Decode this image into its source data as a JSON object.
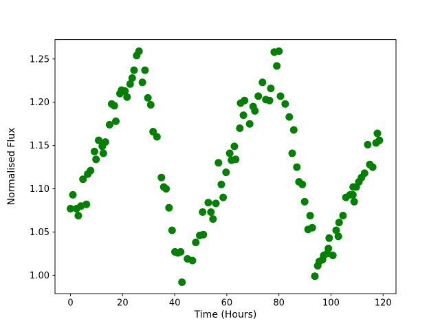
{
  "figure": {
    "background_color": "#ffffff",
    "spine_color": "#000000",
    "tick_color": "#000000"
  },
  "chart_data": {
    "type": "scatter",
    "title": "",
    "xlabel": "Time (Hours)",
    "ylabel": "Normalised Flux",
    "legend": null,
    "grid": false,
    "marker_color": "#008000",
    "marker_radius": 5.5,
    "xlim": [
      -5.95,
      124.95
    ],
    "ylim": [
      0.9787,
      1.2724
    ],
    "x_ticks": [
      0,
      20,
      40,
      60,
      80,
      100,
      120
    ],
    "x_tick_labels": [
      "0",
      "20",
      "40",
      "60",
      "80",
      "100",
      "120"
    ],
    "y_ticks": [
      1.0,
      1.05,
      1.1,
      1.15,
      1.2,
      1.25
    ],
    "y_tick_labels": [
      "1.00",
      "1.05",
      "1.10",
      "1.15",
      "1.20",
      "1.25"
    ],
    "points": [
      [
        0.0,
        1.077
      ],
      [
        0.9,
        1.093
      ],
      [
        2.3,
        1.077
      ],
      [
        3.0,
        1.069
      ],
      [
        4.0,
        1.08
      ],
      [
        4.8,
        1.111
      ],
      [
        6.1,
        1.082
      ],
      [
        6.6,
        1.117
      ],
      [
        7.7,
        1.121
      ],
      [
        9.2,
        1.143
      ],
      [
        9.8,
        1.134
      ],
      [
        10.8,
        1.156
      ],
      [
        12.2,
        1.149
      ],
      [
        12.6,
        1.141
      ],
      [
        13.4,
        1.154
      ],
      [
        15.0,
        1.174
      ],
      [
        15.8,
        1.198
      ],
      [
        16.8,
        1.196
      ],
      [
        17.4,
        1.178
      ],
      [
        19.0,
        1.21
      ],
      [
        19.6,
        1.214
      ],
      [
        20.9,
        1.213
      ],
      [
        21.7,
        1.206
      ],
      [
        22.9,
        1.221
      ],
      [
        23.7,
        1.228
      ],
      [
        24.4,
        1.237
      ],
      [
        25.4,
        1.254
      ],
      [
        26.3,
        1.259
      ],
      [
        27.6,
        1.223
      ],
      [
        28.6,
        1.237
      ],
      [
        29.7,
        1.205
      ],
      [
        30.8,
        1.197
      ],
      [
        31.7,
        1.166
      ],
      [
        33.2,
        1.16
      ],
      [
        34.9,
        1.113
      ],
      [
        35.8,
        1.102
      ],
      [
        36.7,
        1.1
      ],
      [
        37.8,
        1.078
      ],
      [
        39.0,
        1.052
      ],
      [
        40.1,
        1.027
      ],
      [
        41.2,
        1.026
      ],
      [
        42.3,
        1.027
      ],
      [
        42.8,
        0.992
      ],
      [
        44.9,
        1.019
      ],
      [
        46.8,
        1.017
      ],
      [
        48.1,
        1.038
      ],
      [
        49.6,
        1.046
      ],
      [
        50.7,
        1.073
      ],
      [
        51.0,
        1.047
      ],
      [
        52.9,
        1.084
      ],
      [
        53.9,
        1.073
      ],
      [
        54.7,
        1.065
      ],
      [
        55.8,
        1.083
      ],
      [
        56.8,
        1.13
      ],
      [
        57.9,
        1.105
      ],
      [
        58.6,
        1.09
      ],
      [
        59.7,
        1.119
      ],
      [
        61.1,
        1.141
      ],
      [
        61.8,
        1.133
      ],
      [
        62.9,
        1.149
      ],
      [
        63.4,
        1.134
      ],
      [
        65.0,
        1.17
      ],
      [
        65.3,
        1.199
      ],
      [
        66.4,
        1.185
      ],
      [
        66.8,
        1.202
      ],
      [
        68.8,
        1.175
      ],
      [
        70.1,
        1.195
      ],
      [
        70.8,
        1.19
      ],
      [
        72.1,
        1.207
      ],
      [
        73.7,
        1.223
      ],
      [
        75.0,
        1.203
      ],
      [
        76.4,
        1.202
      ],
      [
        76.9,
        1.216
      ],
      [
        78.2,
        1.258
      ],
      [
        79.2,
        1.242
      ],
      [
        80.0,
        1.259
      ],
      [
        80.6,
        1.207
      ],
      [
        82.4,
        1.198
      ],
      [
        84.0,
        1.183
      ],
      [
        85.1,
        1.141
      ],
      [
        85.7,
        1.168
      ],
      [
        86.9,
        1.125
      ],
      [
        87.7,
        1.108
      ],
      [
        89.0,
        1.105
      ],
      [
        89.9,
        1.085
      ],
      [
        91.2,
        1.053
      ],
      [
        92.0,
        1.069
      ],
      [
        92.8,
        1.055
      ],
      [
        93.8,
        0.999
      ],
      [
        94.9,
        1.011
      ],
      [
        95.5,
        1.016
      ],
      [
        96.7,
        1.018
      ],
      [
        97.2,
        1.023
      ],
      [
        98.5,
        1.025
      ],
      [
        99.0,
        1.031
      ],
      [
        99.3,
        1.043
      ],
      [
        100.7,
        1.023
      ],
      [
        102.0,
        1.052
      ],
      [
        102.8,
        1.045
      ],
      [
        103.1,
        1.061
      ],
      [
        104.6,
        1.069
      ],
      [
        105.7,
        1.09
      ],
      [
        107.3,
        1.093
      ],
      [
        108.4,
        1.093
      ],
      [
        108.5,
        1.102
      ],
      [
        108.9,
        1.085
      ],
      [
        109.7,
        1.102
      ],
      [
        110.7,
        1.108
      ],
      [
        111.7,
        1.113
      ],
      [
        112.9,
        1.118
      ],
      [
        114.1,
        1.151
      ],
      [
        114.9,
        1.128
      ],
      [
        116.0,
        1.125
      ],
      [
        117.3,
        1.153
      ],
      [
        117.8,
        1.164
      ],
      [
        118.6,
        1.156
      ]
    ]
  }
}
